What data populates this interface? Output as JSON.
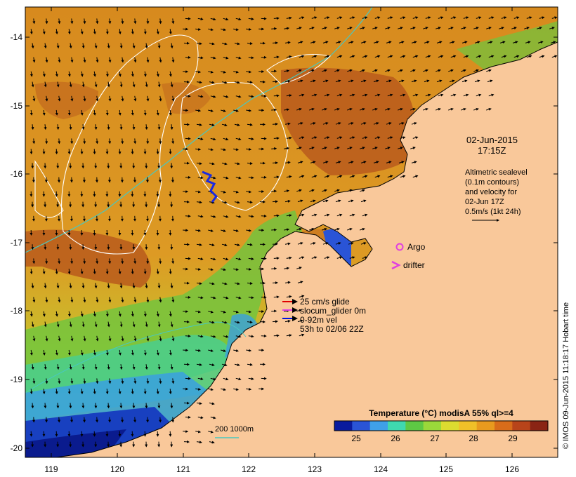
{
  "map": {
    "timestamp_date": "02-Jun-2015",
    "timestamp_time": "17:15Z",
    "altimetry_lines": [
      "Altimetric sealevel",
      "(0.1m contours)",
      "and velocity for",
      "02-Jun 17Z",
      "0.5m/s (1kt 24h)"
    ],
    "credit": "© IMOS 09-Jun-2015 11:18:17 Hobart time",
    "colorbar": {
      "title": "Temperature (°C) modisA 55% ql>=4",
      "ticks": [
        "25",
        "26",
        "27",
        "28",
        "29"
      ],
      "colors": [
        "#0a1b9e",
        "#2a54d6",
        "#3fa0e8",
        "#3fd8b0",
        "#5ec844",
        "#9ad83a",
        "#dcdc30",
        "#f0c028",
        "#e89a1e",
        "#d86c1a",
        "#b8441a",
        "#8a2414"
      ]
    },
    "x_ticks": [
      "119",
      "120",
      "121",
      "122",
      "123",
      "124",
      "125",
      "126"
    ],
    "y_ticks": [
      "-14",
      "-15",
      "-16",
      "-17",
      "-18",
      "-19",
      "-20"
    ],
    "legend_platforms": [
      {
        "label": "Argo",
        "color": "#e040e0",
        "icon": "circle-icon"
      },
      {
        "label": "drifter",
        "color": "#e040e0",
        "icon": "chevron-icon"
      }
    ],
    "legend_glider": [
      {
        "label": "25 cm/s glide",
        "color": "#e00000"
      },
      {
        "label": "slocum_glider 0m",
        "color": "#e040e0"
      },
      {
        "label": "0-92m vel",
        "color": "#0010e0"
      }
    ],
    "legend_glider_note": "53h to 02/06 22Z",
    "bathy_label": "200  1000m",
    "land_color": "#f9c89a",
    "bathy_color": "#48c8c0"
  }
}
